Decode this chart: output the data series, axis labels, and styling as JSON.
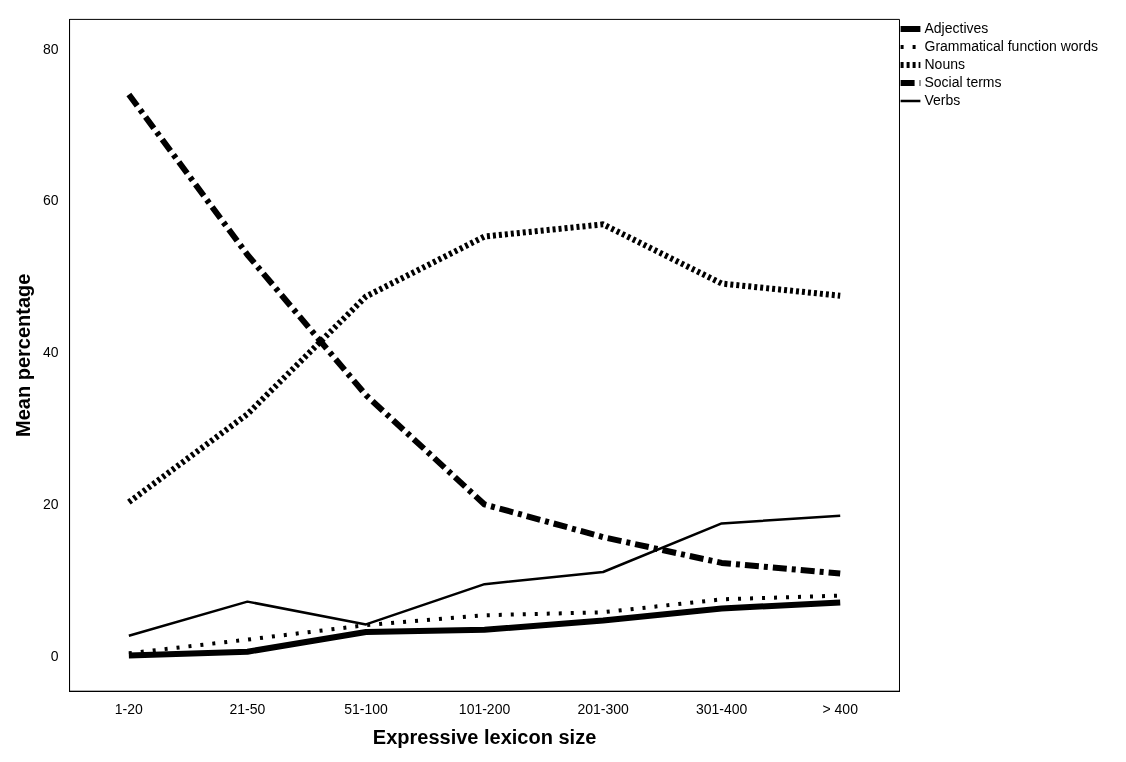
{
  "chart_data": {
    "type": "line",
    "xlabel": "Expressive lexicon size",
    "ylabel": "Mean percentage",
    "categories": [
      "1-20",
      "21-50",
      "51-100",
      "101-200",
      "201-300",
      "301-400",
      "> 400"
    ],
    "series": [
      {
        "name": "Adjectives",
        "color": "#000000",
        "line_style": "solid",
        "values": [
          0.2,
          0.7,
          3.3,
          3.6,
          4.8,
          6.4,
          7.2
        ]
      },
      {
        "name": "Grammatical function words",
        "color": "#000000",
        "line_style": "dotted",
        "values": [
          0.5,
          2.3,
          4.2,
          5.5,
          5.9,
          7.6,
          8.1
        ]
      },
      {
        "name": "Nouns",
        "color": "#000000",
        "line_style": "dotted",
        "values": [
          20.4,
          32,
          47.5,
          55.4,
          57,
          49.2,
          47.6
        ]
      },
      {
        "name": "Social terms",
        "color": "#000000",
        "line_style": "dashed",
        "values": [
          74.1,
          53,
          34.5,
          20.1,
          15.8,
          12.4,
          11
        ]
      },
      {
        "name": "Verbs",
        "color": "#000000",
        "line_style": "solid",
        "values": [
          2.8,
          7.3,
          4.3,
          9.6,
          11.2,
          17.6,
          18.6
        ]
      }
    ],
    "ylim": [
      -4.5,
      84
    ],
    "yticks": [
      0,
      20,
      40,
      60,
      80
    ],
    "grid": false,
    "legend": "right",
    "marker": "none"
  }
}
